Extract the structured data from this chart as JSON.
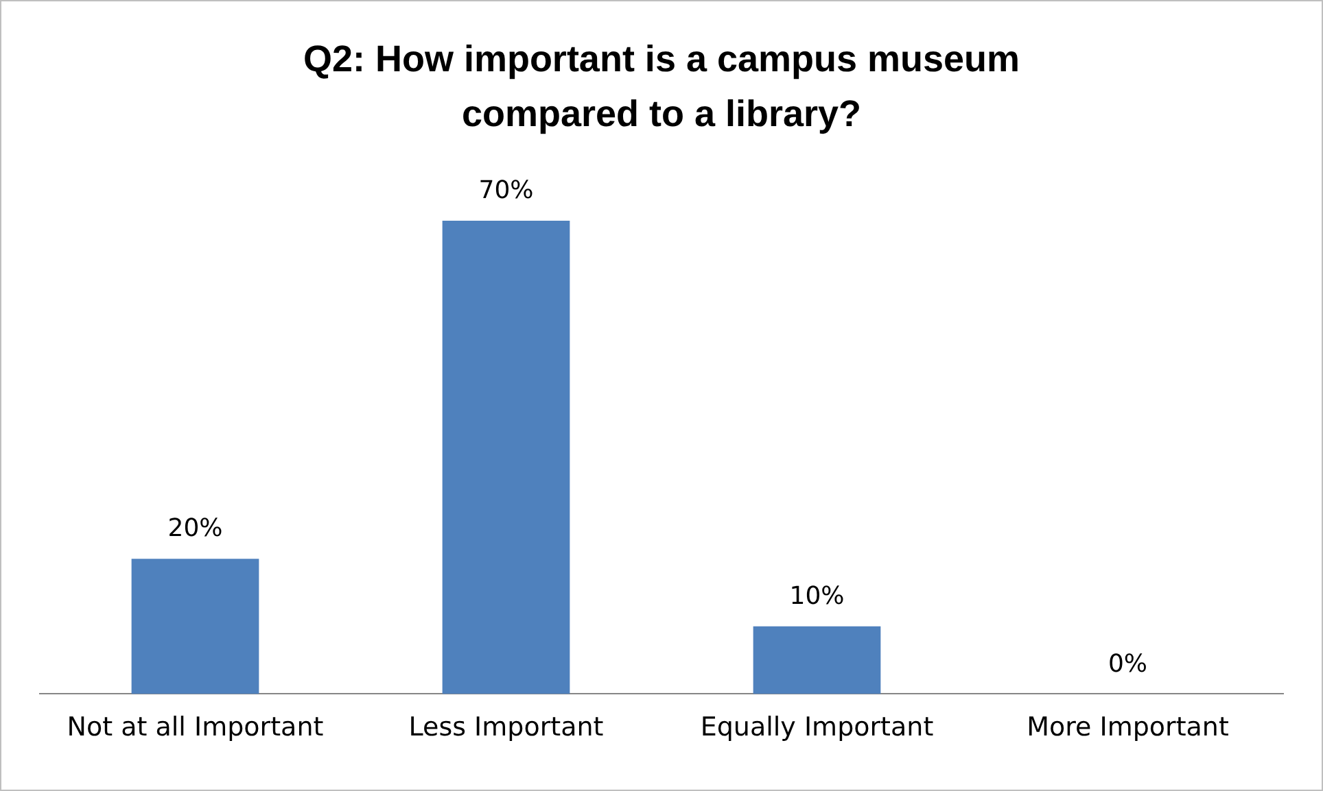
{
  "chart_data": {
    "type": "bar",
    "title": "Q2: How important is a campus museum compared to a library?",
    "categories": [
      "Not at all Important",
      "Less Important",
      "Equally Important",
      "More Important"
    ],
    "values": [
      20,
      70,
      10,
      0
    ],
    "value_labels": [
      "20%",
      "70%",
      "10%",
      "0%"
    ],
    "color": "#4f81bd",
    "grid": false,
    "legend": false,
    "tick_labels": "x"
  }
}
